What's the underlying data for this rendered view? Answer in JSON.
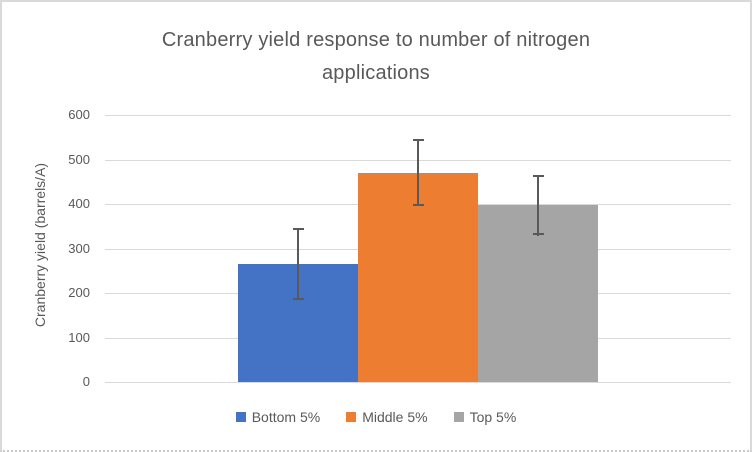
{
  "window": {
    "background": "#ffffff",
    "border_color": "#d9d9d9"
  },
  "chart_data": {
    "type": "bar",
    "title": "Cranberry yield response to number of nitrogen applications",
    "xlabel": "",
    "ylabel": "Cranberry yield (barrels/A)",
    "categories": [
      ""
    ],
    "series": [
      {
        "name": "Bottom 5%",
        "values": [
          265
        ],
        "error": [
          80
        ],
        "color": "#4472C4"
      },
      {
        "name": "Middle 5%",
        "values": [
          470
        ],
        "error": [
          75
        ],
        "color": "#ED7D31"
      },
      {
        "name": "Top 5%",
        "values": [
          398
        ],
        "error": [
          68
        ],
        "color": "#A5A5A5"
      }
    ],
    "ylim": [
      0,
      600
    ],
    "yticks": [
      0,
      100,
      200,
      300,
      400,
      500,
      600
    ],
    "grid": true,
    "gridline_color": "#d9d9d9",
    "error_bar_color": "#595959",
    "text_color": "#595959",
    "legend_position": "bottom",
    "legend": [
      "Bottom 5%",
      "Middle 5%",
      "Top 5%"
    ]
  }
}
